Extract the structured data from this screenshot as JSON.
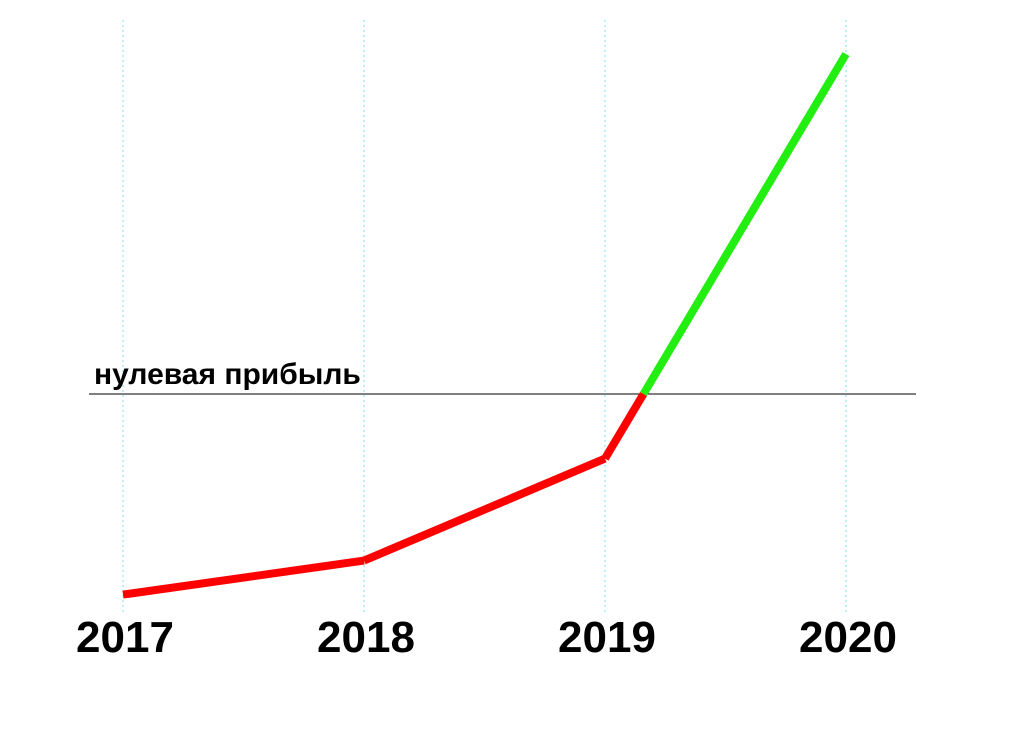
{
  "chart_data": {
    "type": "line",
    "title": "",
    "xlabel": "",
    "ylabel": "",
    "categories": [
      "2017",
      "2018",
      "2019",
      "2020"
    ],
    "values": [
      -0.59,
      -0.49,
      -0.19,
      1.0
    ],
    "ylim": [
      -0.65,
      1.1
    ],
    "grid": {
      "vertical": true,
      "horizontal": false
    },
    "reference_line": {
      "value": 0,
      "label": "нулевая прибыль"
    },
    "colors": {
      "below_reference": "#ff0000",
      "above_reference": "#22ee11",
      "grid": "#7fdcee",
      "reference_line": "#000000"
    }
  }
}
